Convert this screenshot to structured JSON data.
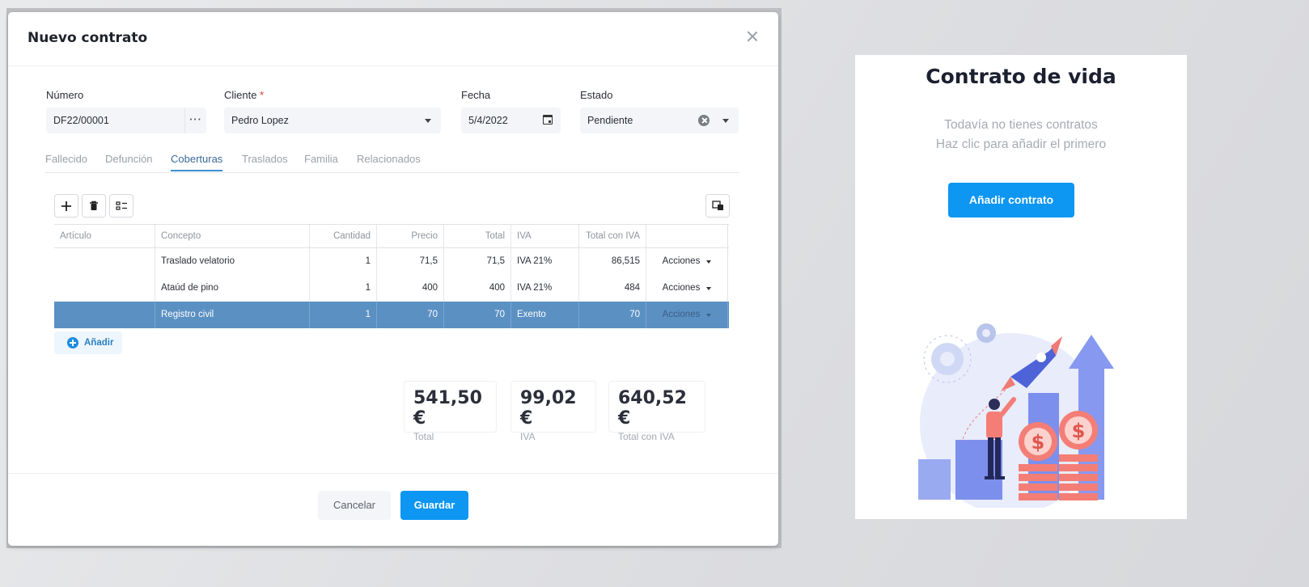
{
  "modal": {
    "title": "Nuevo contrato",
    "fields": {
      "numero": {
        "label": "Número",
        "value": "DF22/00001"
      },
      "cliente": {
        "label": "Cliente",
        "required_mark": "*",
        "value": "Pedro Lopez"
      },
      "fecha": {
        "label": "Fecha",
        "value": "5/4/2022"
      },
      "estado": {
        "label": "Estado",
        "value": "Pendiente"
      }
    },
    "tabs": [
      "Fallecido",
      "Defunción",
      "Coberturas",
      "Traslados",
      "Familia",
      "Relacionados"
    ],
    "active_tab": "Coberturas",
    "grid": {
      "columns": [
        "Artículo",
        "Concepto",
        "Cantidad",
        "Precio",
        "Total",
        "IVA",
        "Total con IVA",
        ""
      ],
      "rows": [
        {
          "articulo": "",
          "concepto": "Traslado velatorio",
          "cantidad": "1",
          "precio": "71,5",
          "total": "71,5",
          "iva": "IVA 21%",
          "total_iva": "86,515",
          "acciones": "Acciones"
        },
        {
          "articulo": "",
          "concepto": "Ataúd de pino",
          "cantidad": "1",
          "precio": "400",
          "total": "400",
          "iva": "IVA 21%",
          "total_iva": "484",
          "acciones": "Acciones"
        },
        {
          "articulo": "",
          "concepto": "Registro civil",
          "cantidad": "1",
          "precio": "70",
          "total": "70",
          "iva": "Exento",
          "total_iva": "70",
          "acciones": "Acciones"
        }
      ],
      "add_label": "Añadir"
    },
    "totals": [
      {
        "value": "541,50 €",
        "label": "Total"
      },
      {
        "value": "99,02 €",
        "label": "IVA"
      },
      {
        "value": "640,52 €",
        "label": "Total con IVA"
      }
    ],
    "footer": {
      "cancel": "Cancelar",
      "save": "Guardar"
    }
  },
  "side_panel": {
    "title": "Contrato de vida",
    "empty_line1": "Todavía no tienes contratos",
    "empty_line2": "Haz clic para añadir el primero",
    "button": "Añadir contrato"
  },
  "colors": {
    "accent": "#0d96f2",
    "selected_row": "#5b90c3",
    "active_tab": "#3a8fd0"
  }
}
